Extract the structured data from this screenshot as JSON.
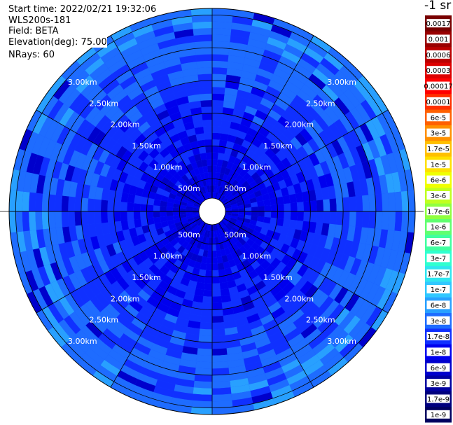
{
  "chart_data": {
    "type": "heatmap",
    "projection": "polar-ppi",
    "info": {
      "start_time": "Start time: 2022/02/21 19:32:06",
      "instrument": "WLS200s-181",
      "field": "Field: BETA",
      "elevation": "Elevation(deg): 75.00",
      "nrays": "NRays: 60"
    },
    "unit_label": "-1 sr",
    "range_rings": [
      {
        "range_m": 500,
        "label": "500m"
      },
      {
        "range_m": 1000,
        "label": "1.00km"
      },
      {
        "range_m": 1500,
        "label": "1.50km"
      },
      {
        "range_m": 2000,
        "label": "2.00km"
      },
      {
        "range_m": 2500,
        "label": "2.50km"
      },
      {
        "range_m": 3000,
        "label": "3.00km"
      }
    ],
    "spokes_deg": [
      0,
      30,
      60,
      90,
      120,
      150,
      180,
      210,
      240,
      270,
      300,
      330
    ],
    "nrays": 60,
    "colorbar": [
      {
        "label": "1e-9",
        "color": "#000060"
      },
      {
        "label": "1.7e-9",
        "color": "#00007e"
      },
      {
        "label": "3e-9",
        "color": "#0000a0"
      },
      {
        "label": "6e-9",
        "color": "#0000cc"
      },
      {
        "label": "1e-8",
        "color": "#0000ee"
      },
      {
        "label": "1.7e-8",
        "color": "#1030ff"
      },
      {
        "label": "3e-8",
        "color": "#1e6cff"
      },
      {
        "label": "6e-8",
        "color": "#28a0ff"
      },
      {
        "label": "1e-7",
        "color": "#30c8ff"
      },
      {
        "label": "1.7e-7",
        "color": "#30e6f0"
      },
      {
        "label": "3e-7",
        "color": "#30ffd0"
      },
      {
        "label": "6e-7",
        "color": "#40ffa0"
      },
      {
        "label": "1e-6",
        "color": "#60ff70"
      },
      {
        "label": "1.7e-6",
        "color": "#90ff40"
      },
      {
        "label": "3e-6",
        "color": "#c0ff20"
      },
      {
        "label": "6e-6",
        "color": "#f0ff00"
      },
      {
        "label": "1e-5",
        "color": "#ffe000"
      },
      {
        "label": "1.7e-5",
        "color": "#ffc000"
      },
      {
        "label": "3e-5",
        "color": "#ff9000"
      },
      {
        "label": "6e-5",
        "color": "#ff6000"
      },
      {
        "label": "0.0001",
        "color": "#ff3000"
      },
      {
        "label": "0.00017",
        "color": "#ff0000"
      },
      {
        "label": "0.0003",
        "color": "#dd0000"
      },
      {
        "label": "0.0006",
        "color": "#bb0000"
      },
      {
        "label": "0.001",
        "color": "#990000"
      },
      {
        "label": "0.0017",
        "color": "#780000"
      }
    ]
  }
}
